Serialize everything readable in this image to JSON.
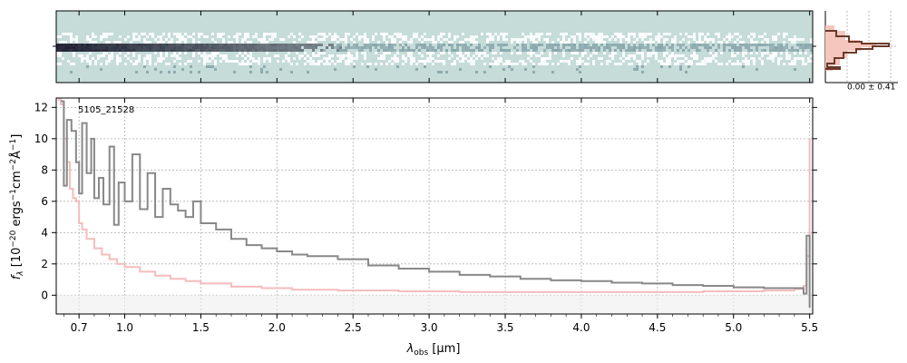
{
  "chart_data": [
    {
      "type": "heatmap",
      "panel": "2d-spectrum",
      "colormap": [
        "#c5dcd9",
        "#ffffff",
        "#1a1a2e"
      ],
      "note_bright_band": "central trace row, darkest at short wavelengths"
    },
    {
      "type": "line",
      "panel": "1d-spectrum",
      "label": "5105_21528",
      "xlabel_main": "λ",
      "xlabel_sub": "obs",
      "xlabel_unit": " [μm]",
      "ylabel": "f_λ [10^-20 ergs^-1 cm^-2 Å^-1]",
      "ylim": [
        -1.2,
        12.6
      ],
      "xlim": [
        0.55,
        5.52
      ],
      "x_ticks": [
        0.7,
        1.0,
        1.5,
        2.0,
        2.5,
        3.0,
        3.5,
        4.0,
        4.5,
        5.0,
        5.5
      ],
      "x_tick_labels": [
        "0.7",
        "1.0",
        "1.5",
        "2.0",
        "2.5",
        "3.0",
        "3.5",
        "4.0",
        "4.5",
        "5.0",
        "5.5"
      ],
      "y_ticks": [
        0,
        2,
        4,
        6,
        8,
        10,
        12
      ],
      "y_tick_labels": [
        "0",
        "2",
        "4",
        "6",
        "8",
        "10",
        "12"
      ],
      "grid": true,
      "series": [
        {
          "role": "flux",
          "color": "#888888",
          "x": [
            0.58,
            0.6,
            0.62,
            0.65,
            0.68,
            0.7,
            0.72,
            0.75,
            0.78,
            0.8,
            0.83,
            0.86,
            0.9,
            0.93,
            0.96,
            1.0,
            1.05,
            1.1,
            1.15,
            1.2,
            1.25,
            1.3,
            1.35,
            1.4,
            1.45,
            1.5,
            1.6,
            1.7,
            1.8,
            1.9,
            2.0,
            2.1,
            2.2,
            2.4,
            2.6,
            2.8,
            3.0,
            3.2,
            3.4,
            3.6,
            3.8,
            4.0,
            4.2,
            4.4,
            4.6,
            4.8,
            5.0,
            5.2,
            5.4,
            5.46,
            5.48,
            5.5
          ],
          "y": [
            12.4,
            7.0,
            11.2,
            10.5,
            8.5,
            6.5,
            11.0,
            7.8,
            10.0,
            6.2,
            7.5,
            5.8,
            9.5,
            4.5,
            7.2,
            6.0,
            9.0,
            5.5,
            7.8,
            5.0,
            6.8,
            5.8,
            5.4,
            5.0,
            6.0,
            4.6,
            4.2,
            3.6,
            3.2,
            3.0,
            2.8,
            2.6,
            2.5,
            2.3,
            1.9,
            1.7,
            1.5,
            1.3,
            1.2,
            1.05,
            0.95,
            0.9,
            0.8,
            0.75,
            0.65,
            0.6,
            0.5,
            0.45,
            0.45,
            0.1,
            3.8,
            -0.8
          ]
        },
        {
          "role": "uncertainty",
          "color": "#f5bcbc",
          "x": [
            0.56,
            0.58,
            0.6,
            0.62,
            0.64,
            0.66,
            0.68,
            0.7,
            0.72,
            0.75,
            0.8,
            0.85,
            0.9,
            0.95,
            1.0,
            1.1,
            1.2,
            1.3,
            1.4,
            1.5,
            1.7,
            1.9,
            2.1,
            2.4,
            2.8,
            3.2,
            3.6,
            4.0,
            4.4,
            4.8,
            5.2,
            5.4,
            5.46,
            5.48,
            5.5
          ],
          "y": [
            12.5,
            12.2,
            10.0,
            8.5,
            6.8,
            6.2,
            6.0,
            4.6,
            4.2,
            3.6,
            3.0,
            2.6,
            2.3,
            2.0,
            1.8,
            1.5,
            1.25,
            1.05,
            0.9,
            0.75,
            0.55,
            0.45,
            0.35,
            0.3,
            0.25,
            0.2,
            0.2,
            0.2,
            0.2,
            0.25,
            0.3,
            0.4,
            0.6,
            2.5,
            10.0
          ]
        }
      ]
    },
    {
      "type": "histogram",
      "panel": "profile",
      "annotation": "0.00 ± 0.41",
      "line_color": "#6b3a2a",
      "fill_color": "#f5c6bd"
    }
  ]
}
